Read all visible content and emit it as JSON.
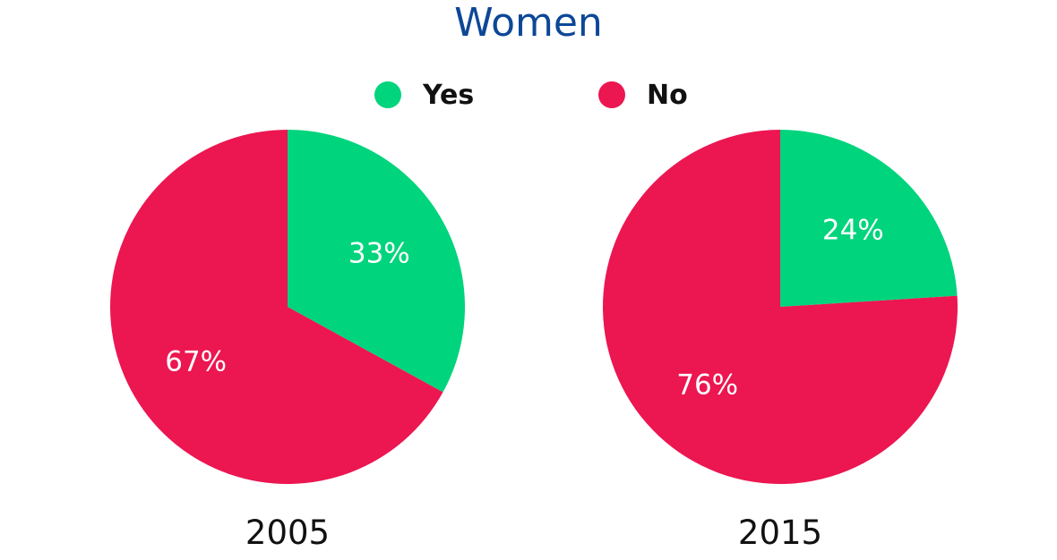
{
  "chart_data": {
    "type": "pie",
    "title": "Women",
    "legend": {
      "placement": "top-center",
      "entries": [
        {
          "label": "Yes",
          "color": "#00d47c"
        },
        {
          "label": "No",
          "color": "#ec1651"
        }
      ]
    },
    "pies": [
      {
        "label": "2005",
        "slices": [
          {
            "name": "Yes",
            "value": 33,
            "display": "33%",
            "color": "#00d47c"
          },
          {
            "name": "No",
            "value": 67,
            "display": "67%",
            "color": "#ec1651"
          }
        ]
      },
      {
        "label": "2015",
        "slices": [
          {
            "name": "Yes",
            "value": 24,
            "display": "24%",
            "color": "#00d47c"
          },
          {
            "name": "No",
            "value": 76,
            "display": "76%",
            "color": "#ec1651"
          }
        ]
      }
    ]
  }
}
